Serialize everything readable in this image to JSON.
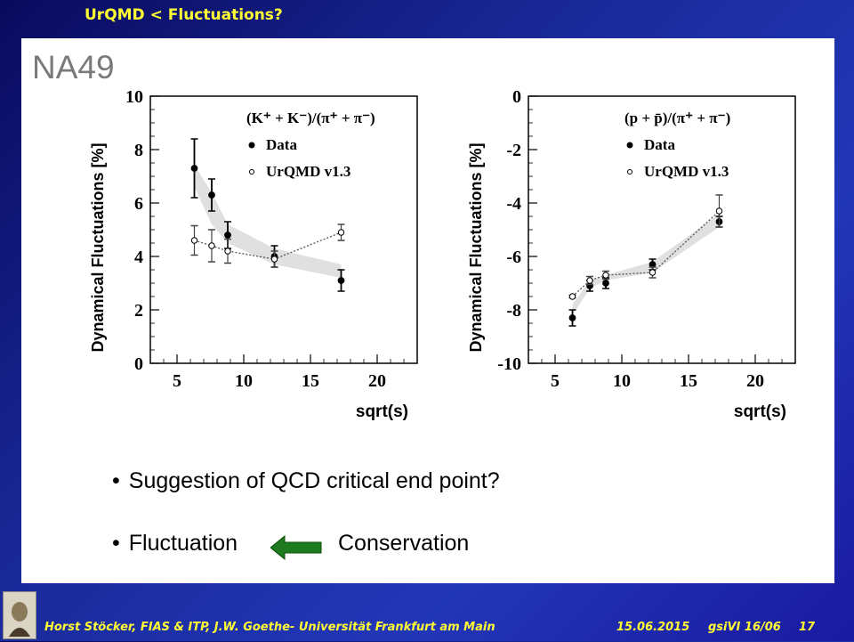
{
  "slide": {
    "title": "UrQMD < Fluctuations?",
    "logo": "NA49",
    "bullets": [
      "Suggestion of QCD critical end point?",
      "Fluctuation"
    ],
    "conservation_label": "Conservation",
    "bullet_symbol": "•"
  },
  "footer": {
    "author": "Horst Stöcker, FIAS & ITP, J.W. Goethe- Universität Frankfurt am Main",
    "date": "15.06.2015",
    "event": "gsiVI 16/06",
    "page": "17"
  },
  "colors": {
    "title": "#ffff33",
    "background": "#1a2a9a",
    "arrow": "#1e7a1e",
    "band": "#e0e0e0"
  },
  "chart_data": [
    {
      "type": "scatter",
      "xlabel": "sqrt(s)",
      "ylabel": "Dynamical Fluctuations [%]",
      "legend_title": "(K⁺ + K⁻)/(π⁺ + π⁻)",
      "legend_position": "top-right",
      "xlim": [
        3,
        23
      ],
      "ylim": [
        0,
        10
      ],
      "xticks": [
        5,
        10,
        15,
        20
      ],
      "yticks": [
        0,
        2,
        4,
        6,
        8,
        10
      ],
      "series": [
        {
          "name": "Data",
          "marker": "filled",
          "x": [
            6.3,
            7.6,
            8.8,
            12.3,
            17.3
          ],
          "y": [
            7.3,
            6.3,
            4.8,
            4.0,
            3.1
          ],
          "err": [
            1.1,
            0.6,
            0.5,
            0.4,
            0.4
          ]
        },
        {
          "name": "UrQMD v1.3",
          "marker": "open",
          "x": [
            6.3,
            7.6,
            8.8,
            12.3,
            17.3
          ],
          "y": [
            4.6,
            4.4,
            4.2,
            3.9,
            4.9
          ],
          "err": [
            0.55,
            0.6,
            0.45,
            0.3,
            0.3
          ]
        }
      ],
      "band": {
        "x": [
          6.3,
          7.6,
          8.8,
          12.3,
          17.3
        ],
        "lo": [
          6.6,
          5.2,
          4.5,
          3.7,
          3.2
        ],
        "hi": [
          7.4,
          6.4,
          5.2,
          4.3,
          3.7
        ]
      }
    },
    {
      "type": "scatter",
      "xlabel": "sqrt(s)",
      "ylabel": "Dynamical Fluctuations [%]",
      "legend_title": "(p + p̄)/(π⁺ + π⁻)",
      "legend_position": "top-right",
      "xlim": [
        3,
        23
      ],
      "ylim": [
        -10,
        0
      ],
      "xticks": [
        5,
        10,
        15,
        20
      ],
      "yticks": [
        0,
        -2,
        -4,
        -6,
        -8,
        -10
      ],
      "series": [
        {
          "name": "Data",
          "marker": "filled",
          "x": [
            6.3,
            7.6,
            8.8,
            12.3,
            17.3
          ],
          "y": [
            -8.3,
            -7.1,
            -7.0,
            -6.3,
            -4.7
          ],
          "err": [
            0.3,
            0.2,
            0.2,
            0.2,
            0.2
          ]
        },
        {
          "name": "UrQMD v1.3",
          "marker": "open",
          "x": [
            6.3,
            7.6,
            8.8,
            12.3,
            17.3
          ],
          "y": [
            -7.5,
            -6.9,
            -6.7,
            -6.6,
            -4.3
          ],
          "err": [
            0.05,
            0.15,
            0.15,
            0.2,
            0.6
          ]
        }
      ],
      "band": {
        "x": [
          6.3,
          7.6,
          8.8,
          12.3,
          17.3
        ],
        "lo": [
          -8.2,
          -7.2,
          -6.9,
          -6.6,
          -4.9
        ],
        "hi": [
          -7.8,
          -6.9,
          -6.7,
          -6.2,
          -4.4
        ]
      }
    }
  ]
}
